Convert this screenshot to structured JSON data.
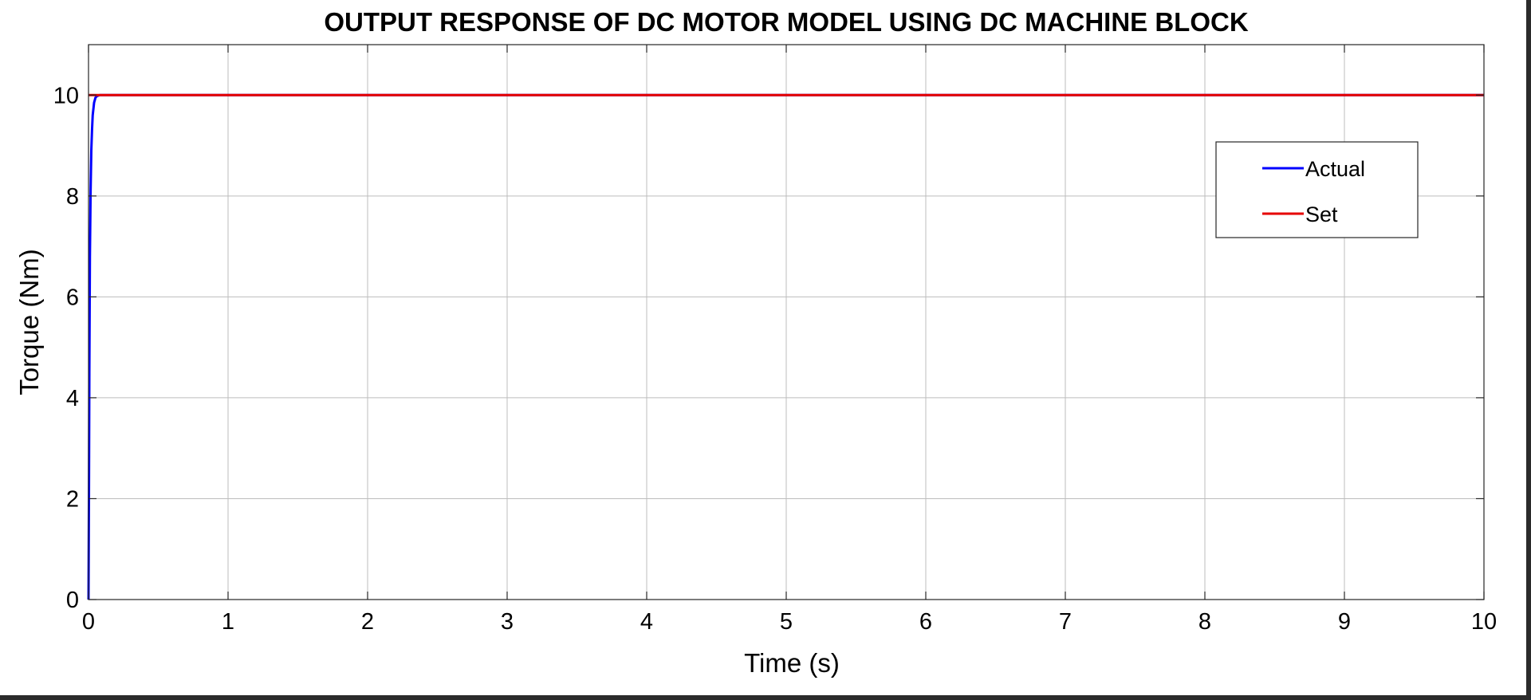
{
  "chart_data": {
    "type": "line",
    "title": "OUTPUT RESPONSE OF DC MOTOR MODEL USING DC MACHINE BLOCK",
    "xlabel": "Time (s)",
    "ylabel": "Torque (Nm)",
    "xlim": [
      0,
      10
    ],
    "ylim": [
      0,
      11
    ],
    "xticks": [
      0,
      1,
      2,
      3,
      4,
      5,
      6,
      7,
      8,
      9,
      10
    ],
    "yticks": [
      0,
      2,
      4,
      6,
      8,
      10
    ],
    "grid": true,
    "legend_position": "top-right",
    "series": [
      {
        "name": "Actual",
        "color": "#0000ff",
        "x": [
          0,
          0.003,
          0.006,
          0.01,
          0.015,
          0.02,
          0.025,
          0.03,
          0.04,
          0.05,
          0.06,
          0.08,
          0.1,
          0.2,
          1,
          2,
          3,
          4,
          5,
          6,
          7,
          8,
          9,
          10
        ],
        "y": [
          0,
          2.0,
          4.5,
          6.8,
          8.1,
          8.9,
          9.3,
          9.6,
          9.85,
          9.95,
          9.98,
          10,
          10,
          10,
          10,
          10,
          10,
          10,
          10,
          10,
          10,
          10,
          10,
          10
        ]
      },
      {
        "name": "Set",
        "color": "#e60000",
        "x": [
          0,
          10
        ],
        "y": [
          10,
          10
        ]
      }
    ]
  }
}
